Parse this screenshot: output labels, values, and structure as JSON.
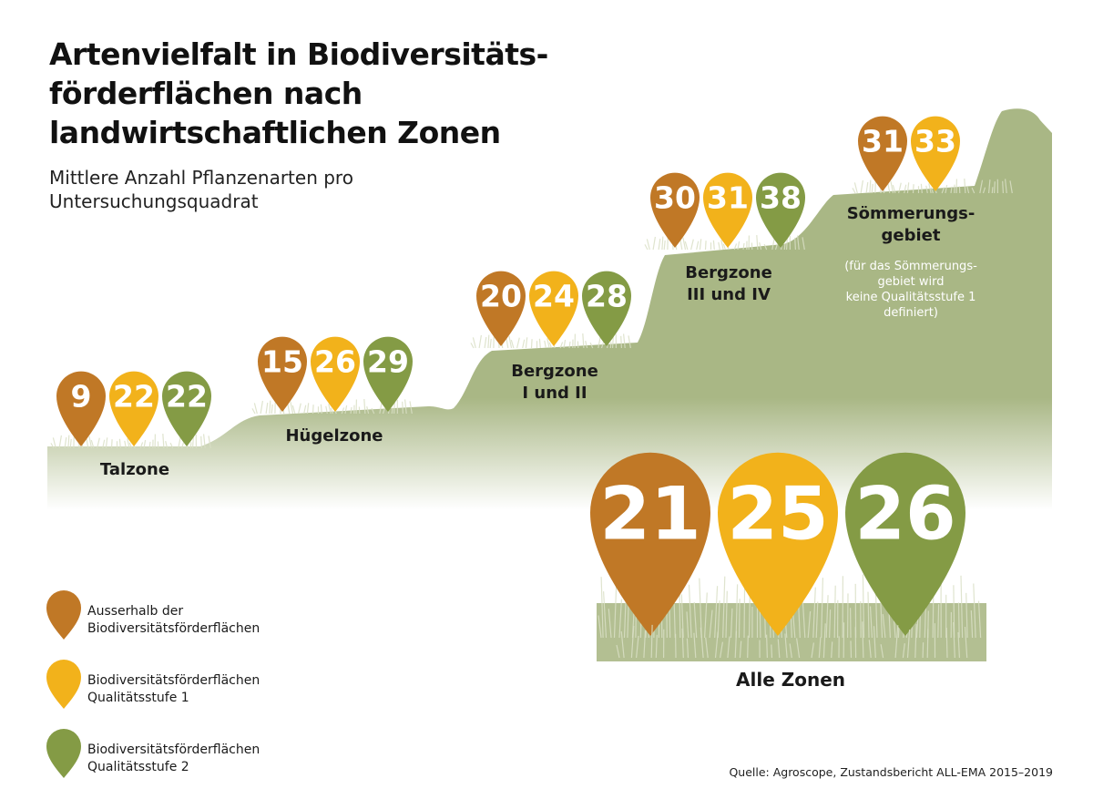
{
  "title": "Artenvielfalt in Biodiversitäts-förderflächen nach landwirtschaftlichen Zonen",
  "subtitle": "Mittlere Anzahl Pflanzenarten pro Untersuchungsquadrat",
  "source": "Quelle: Agroscope, Zustandsbericht ALL-EMA 2015–2019",
  "colors": {
    "ausserhalb": "#c07826",
    "qualitaetsstufe_1": "#f2b21b",
    "qualitaetsstufe_2": "#849b45",
    "landscape": "#a9b785"
  },
  "legend": [
    {
      "key": "ausserhalb",
      "line1": "Ausserhalb der",
      "line2": "Biodiversitätsförderflächen"
    },
    {
      "key": "qualitaetsstufe_1",
      "line1": "Biodiversitätsförderflächen",
      "line2": "Qualitätsstufe 1"
    },
    {
      "key": "qualitaetsstufe_2",
      "line1": "Biodiversitätsförderflächen",
      "line2": "Qualitätsstufe 2"
    }
  ],
  "chart_data": {
    "type": "bar",
    "series_keys": [
      "ausserhalb",
      "qualitaetsstufe_1",
      "qualitaetsstufe_2"
    ],
    "categories": [
      {
        "label": [
          "Talzone"
        ],
        "values": [
          9,
          22,
          22
        ],
        "note": []
      },
      {
        "label": [
          "Hügelzone"
        ],
        "values": [
          15,
          26,
          29
        ],
        "note": []
      },
      {
        "label": [
          "Bergzone",
          "I und II"
        ],
        "values": [
          20,
          24,
          28
        ],
        "note": []
      },
      {
        "label": [
          "Bergzone",
          "III und IV"
        ],
        "values": [
          30,
          31,
          38
        ],
        "note": []
      },
      {
        "label": [
          "Sömmerungs-",
          "gebiet"
        ],
        "values": [
          31,
          33
        ],
        "note": [
          "(für das Sömmerungs-",
          "gebiet wird",
          "keine Qualitätsstufe 1",
          "definiert)"
        ]
      }
    ],
    "total": {
      "label": "Alle Zonen",
      "values": [
        21,
        25,
        26
      ]
    }
  }
}
